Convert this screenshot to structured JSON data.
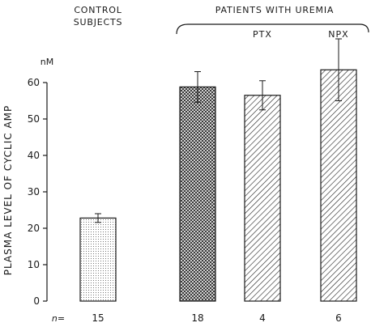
{
  "chart_data": {
    "type": "bar",
    "ylabel": "PLASMA LEVEL OF CYCLIC AMP",
    "yunit": "nM",
    "ylim": [
      0,
      60
    ],
    "yticks": [
      0,
      10,
      20,
      30,
      40,
      50,
      60
    ],
    "group_labels": {
      "control_line1": "CONTROL",
      "control_line2": "SUBJECTS",
      "patients": "PATIENTS WITH UREMIA"
    },
    "n_label": "n=",
    "bars": [
      {
        "label": "",
        "value": 22.8,
        "error": 1.2,
        "n": "15",
        "pattern": "dots"
      },
      {
        "label": "",
        "value": 58.8,
        "error": 4.2,
        "n": "18",
        "pattern": "crosshatch"
      },
      {
        "label": "PTX",
        "value": 56.5,
        "error": 4.0,
        "n": "4",
        "pattern": "diagonal"
      },
      {
        "label": "NPX",
        "value": 63.5,
        "error": 8.5,
        "n": "6",
        "pattern": "diagonal"
      }
    ],
    "grid": false,
    "legend": "none"
  },
  "colors": {
    "ink": "#1a1a1a",
    "background": "#ffffff"
  }
}
